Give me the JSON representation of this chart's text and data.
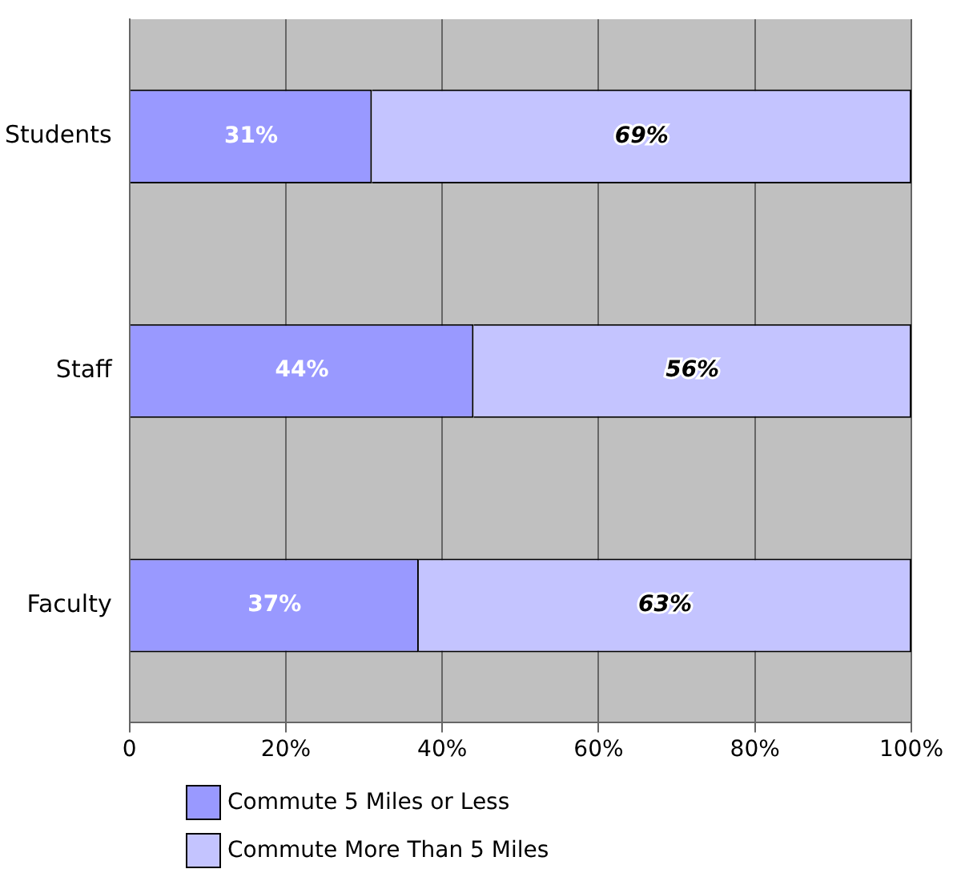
{
  "chart_data": {
    "type": "bar",
    "orientation": "horizontal",
    "stacked": true,
    "categories": [
      "Students",
      "Staff",
      "Faculty"
    ],
    "series": [
      {
        "name": "Commute 5 Miles or Less",
        "color": "#9999ff",
        "values": [
          31,
          44,
          37
        ]
      },
      {
        "name": "Commute More Than 5 Miles",
        "color": "#c4c4ff",
        "values": [
          69,
          56,
          63
        ]
      }
    ],
    "value_labels": [
      [
        "31%",
        "44%",
        "37%"
      ],
      [
        "69%",
        "56%",
        "63%"
      ]
    ],
    "xlim": [
      0,
      100
    ],
    "xticks": [
      {
        "value": 0,
        "label": "0"
      },
      {
        "value": 20,
        "label": "20%"
      },
      {
        "value": 40,
        "label": "40%"
      },
      {
        "value": 60,
        "label": "60%"
      },
      {
        "value": 80,
        "label": "80%"
      },
      {
        "value": 100,
        "label": "100%"
      }
    ],
    "grid": "x",
    "legend": "bottom"
  }
}
